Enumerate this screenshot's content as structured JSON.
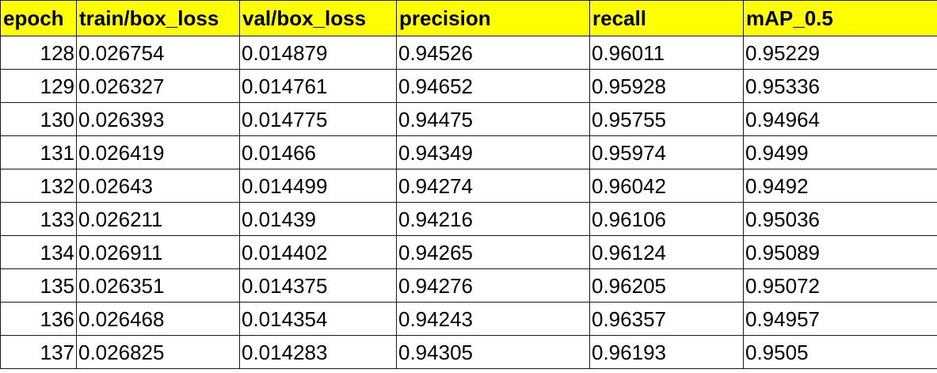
{
  "colors": {
    "header_background": "#ffff00",
    "cell_background": "#ffffff",
    "grid_lines": "#1a1a1a",
    "text": "#000000"
  },
  "table": {
    "headers": [
      "epoch",
      "train/box_loss",
      "val/box_loss",
      "precision",
      "recall",
      "mAP_0.5"
    ],
    "rows": [
      [
        "128",
        "0.026754",
        "0.014879",
        "0.94526",
        "0.96011",
        "0.95229"
      ],
      [
        "129",
        "0.026327",
        "0.014761",
        "0.94652",
        "0.95928",
        "0.95336"
      ],
      [
        "130",
        "0.026393",
        "0.014775",
        "0.94475",
        "0.95755",
        "0.94964"
      ],
      [
        "131",
        "0.026419",
        "0.01466",
        "0.94349",
        "0.95974",
        "0.9499"
      ],
      [
        "132",
        "0.02643",
        "0.014499",
        "0.94274",
        "0.96042",
        "0.9492"
      ],
      [
        "133",
        "0.026211",
        "0.01439",
        "0.94216",
        "0.96106",
        "0.95036"
      ],
      [
        "134",
        "0.026911",
        "0.014402",
        "0.94265",
        "0.96124",
        "0.95089"
      ],
      [
        "135",
        "0.026351",
        "0.014375",
        "0.94276",
        "0.96205",
        "0.95072"
      ],
      [
        "136",
        "0.026468",
        "0.014354",
        "0.94243",
        "0.96357",
        "0.94957"
      ],
      [
        "137",
        "0.026825",
        "0.014283",
        "0.94305",
        "0.96193",
        "0.9505"
      ]
    ]
  }
}
